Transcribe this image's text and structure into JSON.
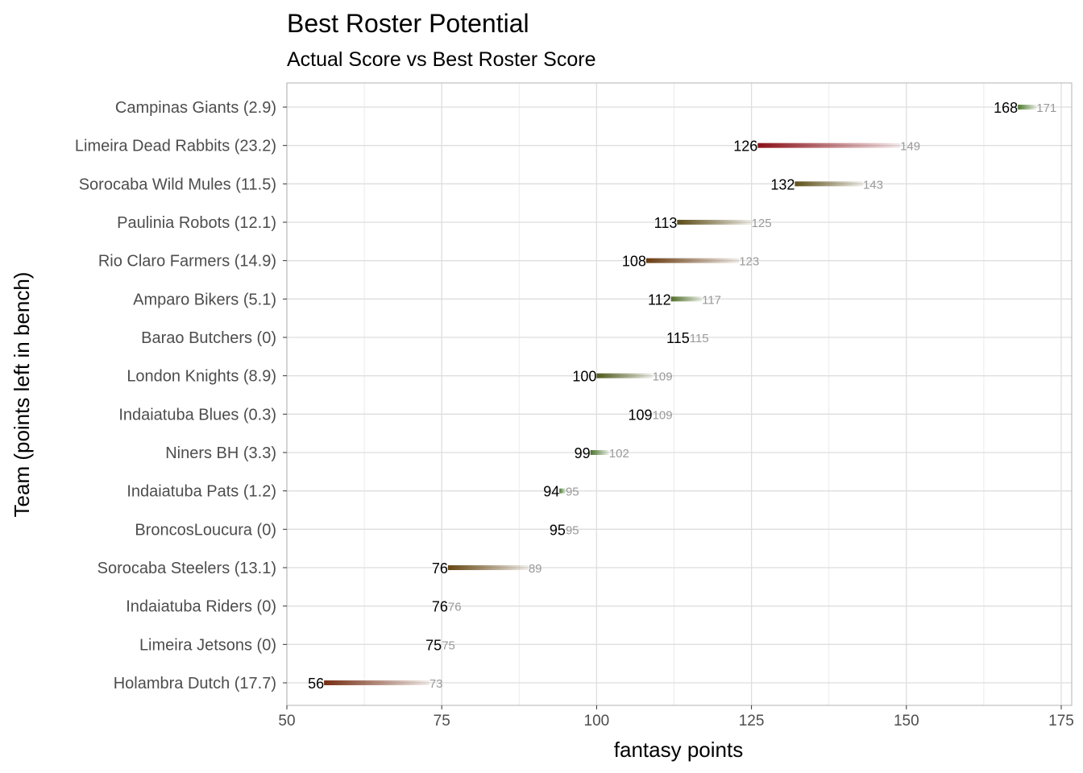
{
  "chart_data": {
    "type": "dumbbell-bar",
    "title": "Best Roster Potential",
    "subtitle": "Actual Score vs Best Roster Score",
    "xlabel": "fantasy points",
    "ylabel": "Team (points left in bench)",
    "xlim": [
      50,
      175
    ],
    "xticks": [
      50,
      75,
      100,
      125,
      150,
      175
    ],
    "grid": true,
    "rows": [
      {
        "label": "Campinas Giants (2.9)",
        "actual": 168,
        "best": 171,
        "bench": 2.9,
        "color": "#4e7a2e"
      },
      {
        "label": "Limeira Dead Rabbits (23.2)",
        "actual": 126,
        "best": 149,
        "bench": 23.2,
        "color": "#8b1118"
      },
      {
        "label": "Sorocaba Wild Mules (11.5)",
        "actual": 132,
        "best": 143,
        "bench": 11.5,
        "color": "#5e5018"
      },
      {
        "label": "Paulinia Robots (12.1)",
        "actual": 113,
        "best": 125,
        "bench": 12.1,
        "color": "#5c4c16"
      },
      {
        "label": "Rio Claro Farmers (14.9)",
        "actual": 108,
        "best": 123,
        "bench": 14.9,
        "color": "#6a3c12"
      },
      {
        "label": "Amparo Bikers (5.1)",
        "actual": 112,
        "best": 117,
        "bench": 5.1,
        "color": "#4f6e28"
      },
      {
        "label": "Barao Butchers (0)",
        "actual": 115,
        "best": 115,
        "bench": 0,
        "color": "#3f7a2e"
      },
      {
        "label": "London Knights (8.9)",
        "actual": 100,
        "best": 109,
        "bench": 8.9,
        "color": "#50591c"
      },
      {
        "label": "Indaiatuba Blues (0.3)",
        "actual": 109,
        "best": 109,
        "bench": 0.3,
        "color": "#3f7a2e"
      },
      {
        "label": "Niners BH (3.3)",
        "actual": 99,
        "best": 102,
        "bench": 3.3,
        "color": "#4a742c"
      },
      {
        "label": "Indaiatuba Pats (1.2)",
        "actual": 94,
        "best": 95,
        "bench": 1.2,
        "color": "#42782e"
      },
      {
        "label": "BroncosLoucura (0)",
        "actual": 95,
        "best": 95,
        "bench": 0,
        "color": "#3f7a2e"
      },
      {
        "label": "Sorocaba Steelers (13.1)",
        "actual": 76,
        "best": 89,
        "bench": 13.1,
        "color": "#654612"
      },
      {
        "label": "Indaiatuba Riders (0)",
        "actual": 76,
        "best": 76,
        "bench": 0,
        "color": "#3f7a2e"
      },
      {
        "label": "Limeira Jetsons (0)",
        "actual": 75,
        "best": 75,
        "bench": 0,
        "color": "#3f7a2e"
      },
      {
        "label": "Holambra Dutch (17.7)",
        "actual": 56,
        "best": 73,
        "bench": 17.7,
        "color": "#772e14"
      }
    ]
  }
}
